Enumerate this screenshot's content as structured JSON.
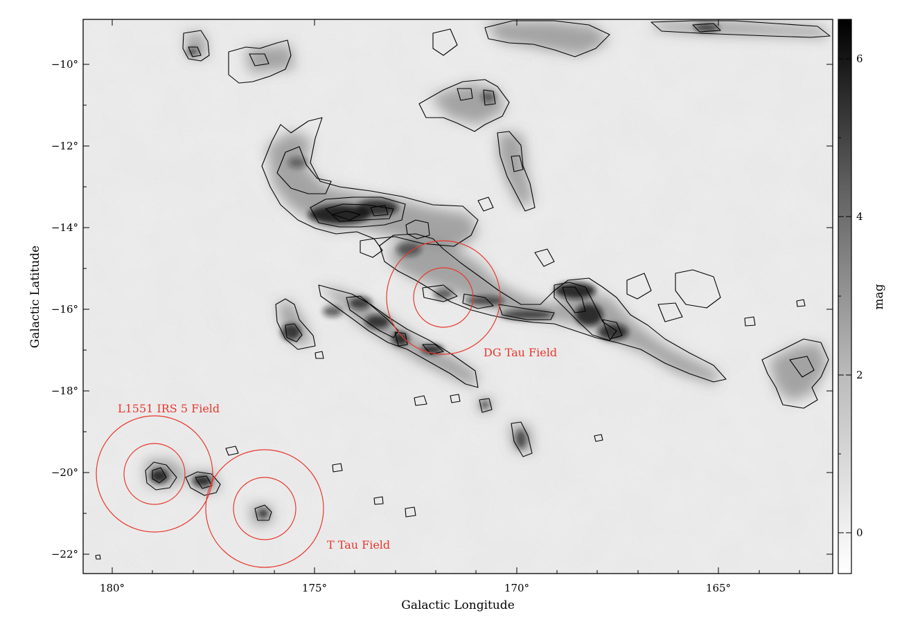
{
  "map": {
    "type": "extinction-map",
    "xlabel": "Galactic Longitude",
    "ylabel": "Galactic Latitude",
    "x_range_deg": [
      180.8,
      162.2
    ],
    "y_range_deg": [
      -22.5,
      -8.9
    ],
    "x_ticks": [
      {
        "value": 180,
        "label": "180°"
      },
      {
        "value": 175,
        "label": "175°"
      },
      {
        "value": 170,
        "label": "170°"
      },
      {
        "value": 165,
        "label": "165°"
      }
    ],
    "y_ticks": [
      {
        "value": -10,
        "label": "−10°"
      },
      {
        "value": -12,
        "label": "−12°"
      },
      {
        "value": -14,
        "label": "−14°"
      },
      {
        "value": -16,
        "label": "−16°"
      },
      {
        "value": -18,
        "label": "−18°"
      },
      {
        "value": -20,
        "label": "−20°"
      },
      {
        "value": -22,
        "label": "−22°"
      }
    ],
    "colorbar": {
      "label": "mag",
      "range": [
        -0.5,
        6.5
      ],
      "colormap": "grayscale, white (low) to black (high)",
      "ticks": [
        {
          "value": 0,
          "label": "0"
        },
        {
          "value": 2,
          "label": "2"
        },
        {
          "value": 4,
          "label": "4"
        },
        {
          "value": 6,
          "label": "6"
        }
      ]
    },
    "field_color": "#e8362c",
    "fields": [
      {
        "name": "L1551 IRS 5 Field",
        "center_lon": 178.9,
        "center_lat": -20.05,
        "inner_radius_deg": 0.75,
        "outer_radius_deg": 1.45
      },
      {
        "name": "T Tau Field",
        "center_lon": 176.2,
        "center_lat": -20.9,
        "inner_radius_deg": 0.75,
        "outer_radius_deg": 1.45
      },
      {
        "name": "DG Tau Field",
        "center_lon": 171.9,
        "center_lat": -15.65,
        "inner_radius_deg": 0.7,
        "outer_radius_deg": 1.4
      }
    ],
    "dark_cores": [
      {
        "lon": 178.9,
        "lat": -20.05,
        "peak_mag": 4.5
      },
      {
        "lon": 177.9,
        "lat": -20.2,
        "peak_mag": 4.0
      },
      {
        "lon": 176.2,
        "lat": -20.95,
        "peak_mag": 3.5
      },
      {
        "lon": 175.5,
        "lat": -16.6,
        "peak_mag": 5.0
      },
      {
        "lon": 174.3,
        "lat": -13.8,
        "peak_mag": 6.0
      },
      {
        "lon": 173.6,
        "lat": -13.5,
        "peak_mag": 5.8
      },
      {
        "lon": 173.0,
        "lat": -16.6,
        "peak_mag": 5.0
      },
      {
        "lon": 172.0,
        "lat": -16.95,
        "peak_mag": 5.3
      },
      {
        "lon": 168.8,
        "lat": -15.5,
        "peak_mag": 6.0
      },
      {
        "lon": 168.3,
        "lat": -16.2,
        "peak_mag": 5.5
      },
      {
        "lon": 167.8,
        "lat": -16.6,
        "peak_mag": 5.0
      },
      {
        "lon": 171.3,
        "lat": -10.7,
        "peak_mag": 4.0
      },
      {
        "lon": 170.8,
        "lat": -11.0,
        "peak_mag": 4.0
      },
      {
        "lon": 166.5,
        "lat": -9.2,
        "peak_mag": 4.5
      },
      {
        "lon": 179.2,
        "lat": -9.7,
        "peak_mag": 4.0
      }
    ]
  }
}
